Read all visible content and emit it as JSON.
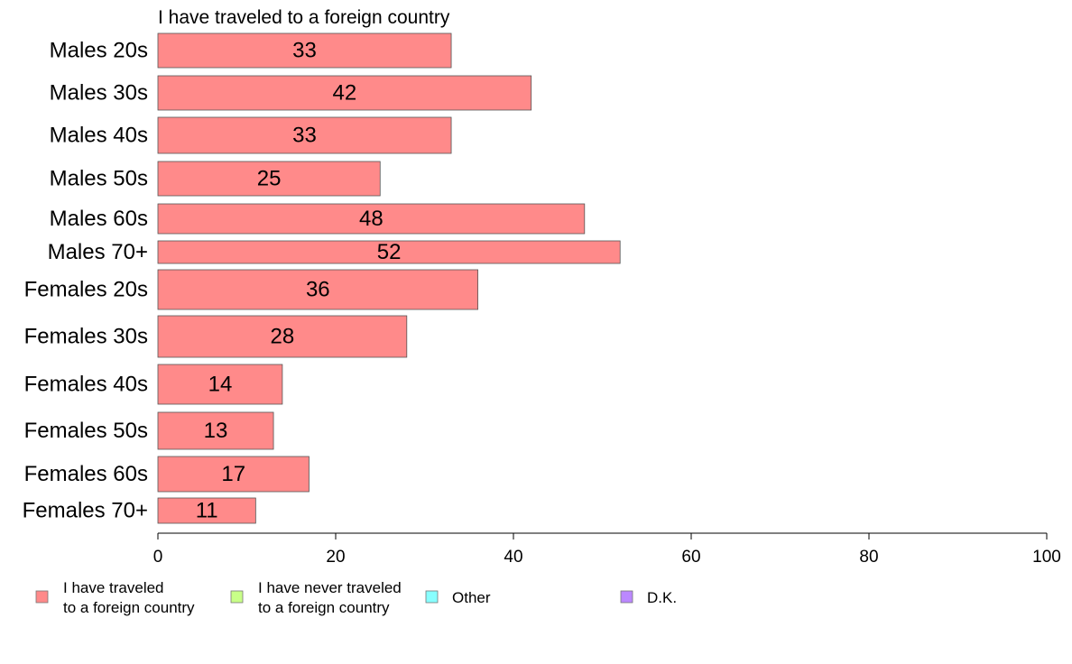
{
  "chart_data": {
    "type": "bar",
    "orientation": "horizontal",
    "title": "I have traveled to a foreign country",
    "categories": [
      "Males 20s",
      "Males 30s",
      "Males 40s",
      "Males 50s",
      "Males 60s",
      "Males 70+",
      "Females 20s",
      "Females 30s",
      "Females 40s",
      "Females 50s",
      "Females 60s",
      "Females 70+"
    ],
    "values": [
      33,
      42,
      33,
      25,
      48,
      52,
      36,
      28,
      14,
      13,
      17,
      11
    ],
    "value_labels": [
      "33",
      "42",
      "33",
      "25",
      "48",
      "52",
      "36",
      "28",
      "14",
      "13",
      "17",
      "11"
    ],
    "xlim": [
      0,
      100
    ],
    "xticks": [
      "0",
      "20",
      "40",
      "60",
      "80",
      "100"
    ],
    "grid": false,
    "legend_position": "bottom-left",
    "bar_color": "#ff8a8a",
    "legend": [
      {
        "line1": "I have traveled",
        "line2": "to a foreign country",
        "color": "#ff8a8a"
      },
      {
        "line1": "I have never traveled",
        "line2": "to a foreign country",
        "color": "#c8ff88"
      },
      {
        "line1": "Other",
        "line2": "",
        "color": "#88ffff"
      },
      {
        "line1": "D.K.",
        "line2": "",
        "color": "#bb88ff"
      }
    ]
  }
}
